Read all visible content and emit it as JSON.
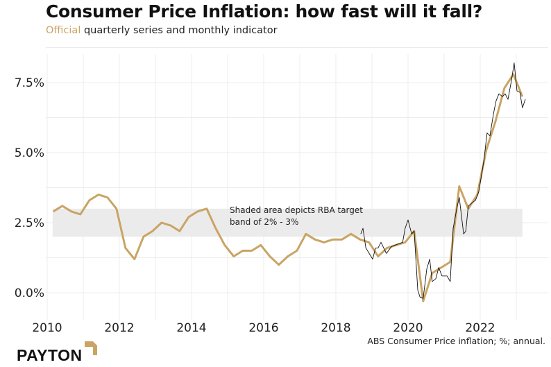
{
  "header": {
    "title": "Consumer Price Inflation: how fast will it fall?",
    "subtitle_highlight": "Official",
    "subtitle_rest": " quarterly series and monthly indicator"
  },
  "footer": {
    "source": "ABS Consumer Price inflation; %; annual.",
    "logo": "PAYTON"
  },
  "colors": {
    "official": "#c9a464",
    "monthly": "#111111",
    "band": "#ebebeb",
    "logo_accent": "#c9a464"
  },
  "chart_data": {
    "type": "line",
    "title": "Consumer Price Inflation: how fast will it fall?",
    "xlim": [
      2010,
      2023.5
    ],
    "ylim": [
      -0.7,
      8.5
    ],
    "x_ticks": [
      2010,
      2012,
      2014,
      2016,
      2018,
      2020,
      2022
    ],
    "x_tick_labels": [
      "2010",
      "2012",
      "2014",
      "2016",
      "2018",
      "2020",
      "2022"
    ],
    "y_ticks": [
      0,
      2.5,
      5,
      7.5
    ],
    "y_tick_labels": [
      "0.0%",
      "2.5%",
      "5.0%",
      "7.5%"
    ],
    "grid": true,
    "band": {
      "from": 2,
      "to": 3,
      "x_start": 2010.15,
      "x_end": 2023.17,
      "label_lines": [
        "Shaded area depicts RBA target",
        "band of 2% - 3%"
      ],
      "label_x": 2015,
      "label_y": 2.75
    },
    "series": [
      {
        "name": "Official quarterly",
        "x": [
          2010.17,
          2010.42,
          2010.67,
          2010.92,
          2011.17,
          2011.42,
          2011.67,
          2011.92,
          2012.17,
          2012.42,
          2012.67,
          2012.92,
          2013.17,
          2013.42,
          2013.67,
          2013.92,
          2014.17,
          2014.42,
          2014.67,
          2014.92,
          2015.17,
          2015.42,
          2015.67,
          2015.92,
          2016.17,
          2016.42,
          2016.67,
          2016.92,
          2017.17,
          2017.42,
          2017.67,
          2017.92,
          2018.17,
          2018.42,
          2018.67,
          2018.92,
          2019.17,
          2019.42,
          2019.67,
          2019.92,
          2020.17,
          2020.42,
          2020.67,
          2020.92,
          2021.17,
          2021.42,
          2021.67,
          2021.92,
          2022.17,
          2022.42,
          2022.67,
          2022.92,
          2023.17
        ],
        "values": [
          2.9,
          3.1,
          2.9,
          2.8,
          3.3,
          3.5,
          3.4,
          3.0,
          1.6,
          1.2,
          2.0,
          2.2,
          2.5,
          2.4,
          2.2,
          2.7,
          2.9,
          3.0,
          2.3,
          1.7,
          1.3,
          1.5,
          1.5,
          1.7,
          1.3,
          1.0,
          1.3,
          1.5,
          2.1,
          1.9,
          1.8,
          1.9,
          1.9,
          2.1,
          1.9,
          1.8,
          1.3,
          1.6,
          1.7,
          1.8,
          2.2,
          -0.3,
          0.7,
          0.9,
          1.1,
          3.8,
          3.0,
          3.5,
          5.1,
          6.1,
          7.3,
          7.8,
          7.0
        ]
      },
      {
        "name": "Monthly indicator",
        "x": [
          2018.69,
          2018.75,
          2018.83,
          2019.02,
          2019.1,
          2019.17,
          2019.25,
          2019.4,
          2019.54,
          2019.85,
          2019.92,
          2020.0,
          2020.1,
          2020.17,
          2020.27,
          2020.33,
          2020.42,
          2020.52,
          2020.6,
          2020.67,
          2020.77,
          2020.85,
          2020.94,
          2021.08,
          2021.17,
          2021.25,
          2021.35,
          2021.42,
          2021.54,
          2021.6,
          2021.67,
          2021.77,
          2021.87,
          2021.96,
          2022.1,
          2022.19,
          2022.27,
          2022.37,
          2022.44,
          2022.52,
          2022.62,
          2022.69,
          2022.77,
          2022.87,
          2022.94,
          2023.02,
          2023.1,
          2023.17,
          2023.25
        ],
        "values": [
          2.1,
          2.3,
          1.6,
          1.2,
          1.6,
          1.6,
          1.8,
          1.4,
          1.65,
          1.8,
          2.3,
          2.6,
          2.1,
          2.2,
          0.1,
          -0.15,
          -0.2,
          0.85,
          1.2,
          0.4,
          0.5,
          0.9,
          0.6,
          0.6,
          0.4,
          2.3,
          3.0,
          3.4,
          2.1,
          2.2,
          3.1,
          3.2,
          3.3,
          3.6,
          4.7,
          5.7,
          5.6,
          6.4,
          6.85,
          7.1,
          7.0,
          7.1,
          6.9,
          7.6,
          8.2,
          7.2,
          7.15,
          6.6,
          6.9
        ]
      }
    ]
  }
}
